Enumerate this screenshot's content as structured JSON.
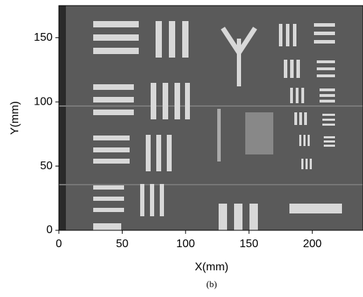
{
  "chart_data": {
    "type": "image",
    "xlabel": "X(mm)",
    "ylabel": "Y(mm)",
    "caption": "(b)",
    "xlim": [
      0,
      240
    ],
    "ylim": [
      0,
      175
    ],
    "xticks": [
      0,
      50,
      100,
      150,
      200
    ],
    "yticks": [
      0,
      50,
      100,
      150
    ]
  }
}
